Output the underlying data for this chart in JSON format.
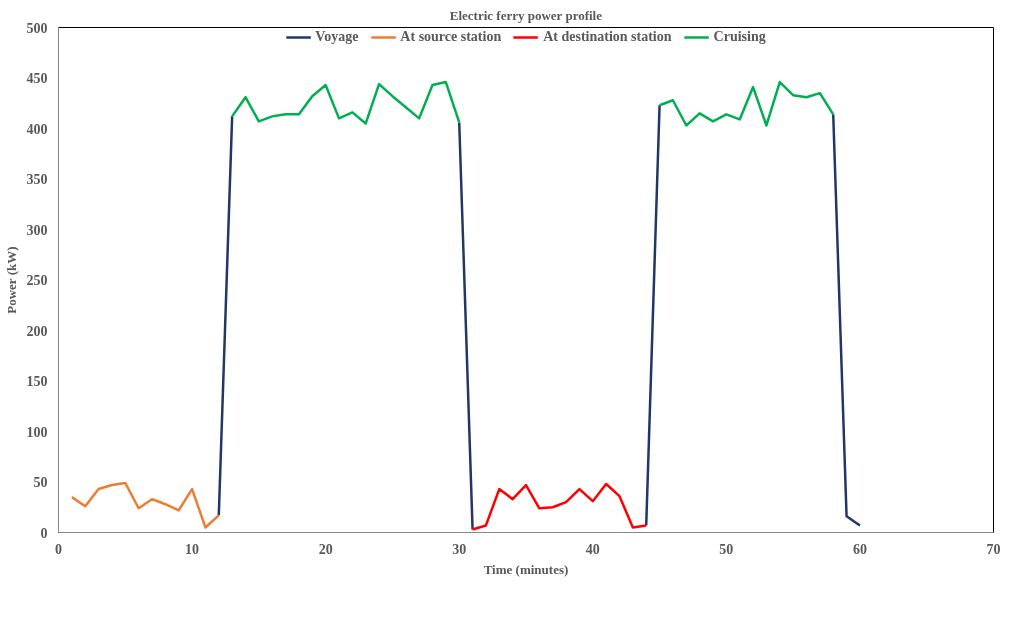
{
  "chart_data": {
    "type": "line",
    "title": "Electric ferry power profile",
    "xlabel": "Time (minutes)",
    "ylabel": "Power (kW)",
    "xlim": [
      0,
      70
    ],
    "xticks": [
      0,
      10,
      20,
      30,
      40,
      50,
      60,
      70
    ],
    "ylim": [
      0,
      500
    ],
    "yticks": [
      0,
      50,
      100,
      150,
      200,
      250,
      300,
      350,
      400,
      450,
      500
    ],
    "grid": false,
    "legend": "top",
    "marker": "none",
    "line_style": "solid",
    "series": [
      {
        "name": "Voyage",
        "color": "#203864",
        "x": [
          12,
          13,
          21,
          30,
          31,
          37,
          44,
          45,
          51,
          58,
          59,
          60
        ],
        "values": [
          17,
          412,
          null,
          406,
          3,
          null,
          7,
          423,
          null,
          414,
          16,
          7
        ]
      },
      {
        "name": "At source station",
        "color": "#ed7d31",
        "x": [
          1,
          2,
          3,
          4,
          5,
          6,
          7,
          8,
          9,
          10,
          11,
          12
        ],
        "values": [
          35,
          26,
          43,
          47,
          49,
          24,
          33,
          28,
          22,
          43,
          5,
          17
        ]
      },
      {
        "name": "At destination station",
        "color": "#ff0000",
        "x": [
          31,
          32,
          33,
          34,
          35,
          36,
          37,
          38,
          39,
          40,
          41,
          42,
          43,
          44
        ],
        "values": [
          3,
          7,
          43,
          33,
          47,
          24,
          25,
          30,
          43,
          31,
          48,
          36,
          5,
          7
        ]
      },
      {
        "name": "Cruising",
        "color": "#00b050",
        "x": [
          13,
          14,
          15,
          16,
          17,
          18,
          19,
          20,
          21,
          22,
          23,
          24,
          25,
          26,
          27,
          28,
          29,
          30,
          31,
          45,
          46,
          47,
          48,
          49,
          50,
          51,
          52,
          53,
          54,
          55,
          56,
          57,
          58
        ],
        "values": [
          412,
          431,
          407,
          412,
          414,
          414,
          432,
          443,
          410,
          416,
          405,
          444,
          432,
          421,
          410,
          443,
          446,
          406,
          null,
          423,
          428,
          403,
          415,
          407,
          414,
          409,
          441,
          403,
          446,
          433,
          431,
          435,
          414
        ]
      }
    ]
  }
}
